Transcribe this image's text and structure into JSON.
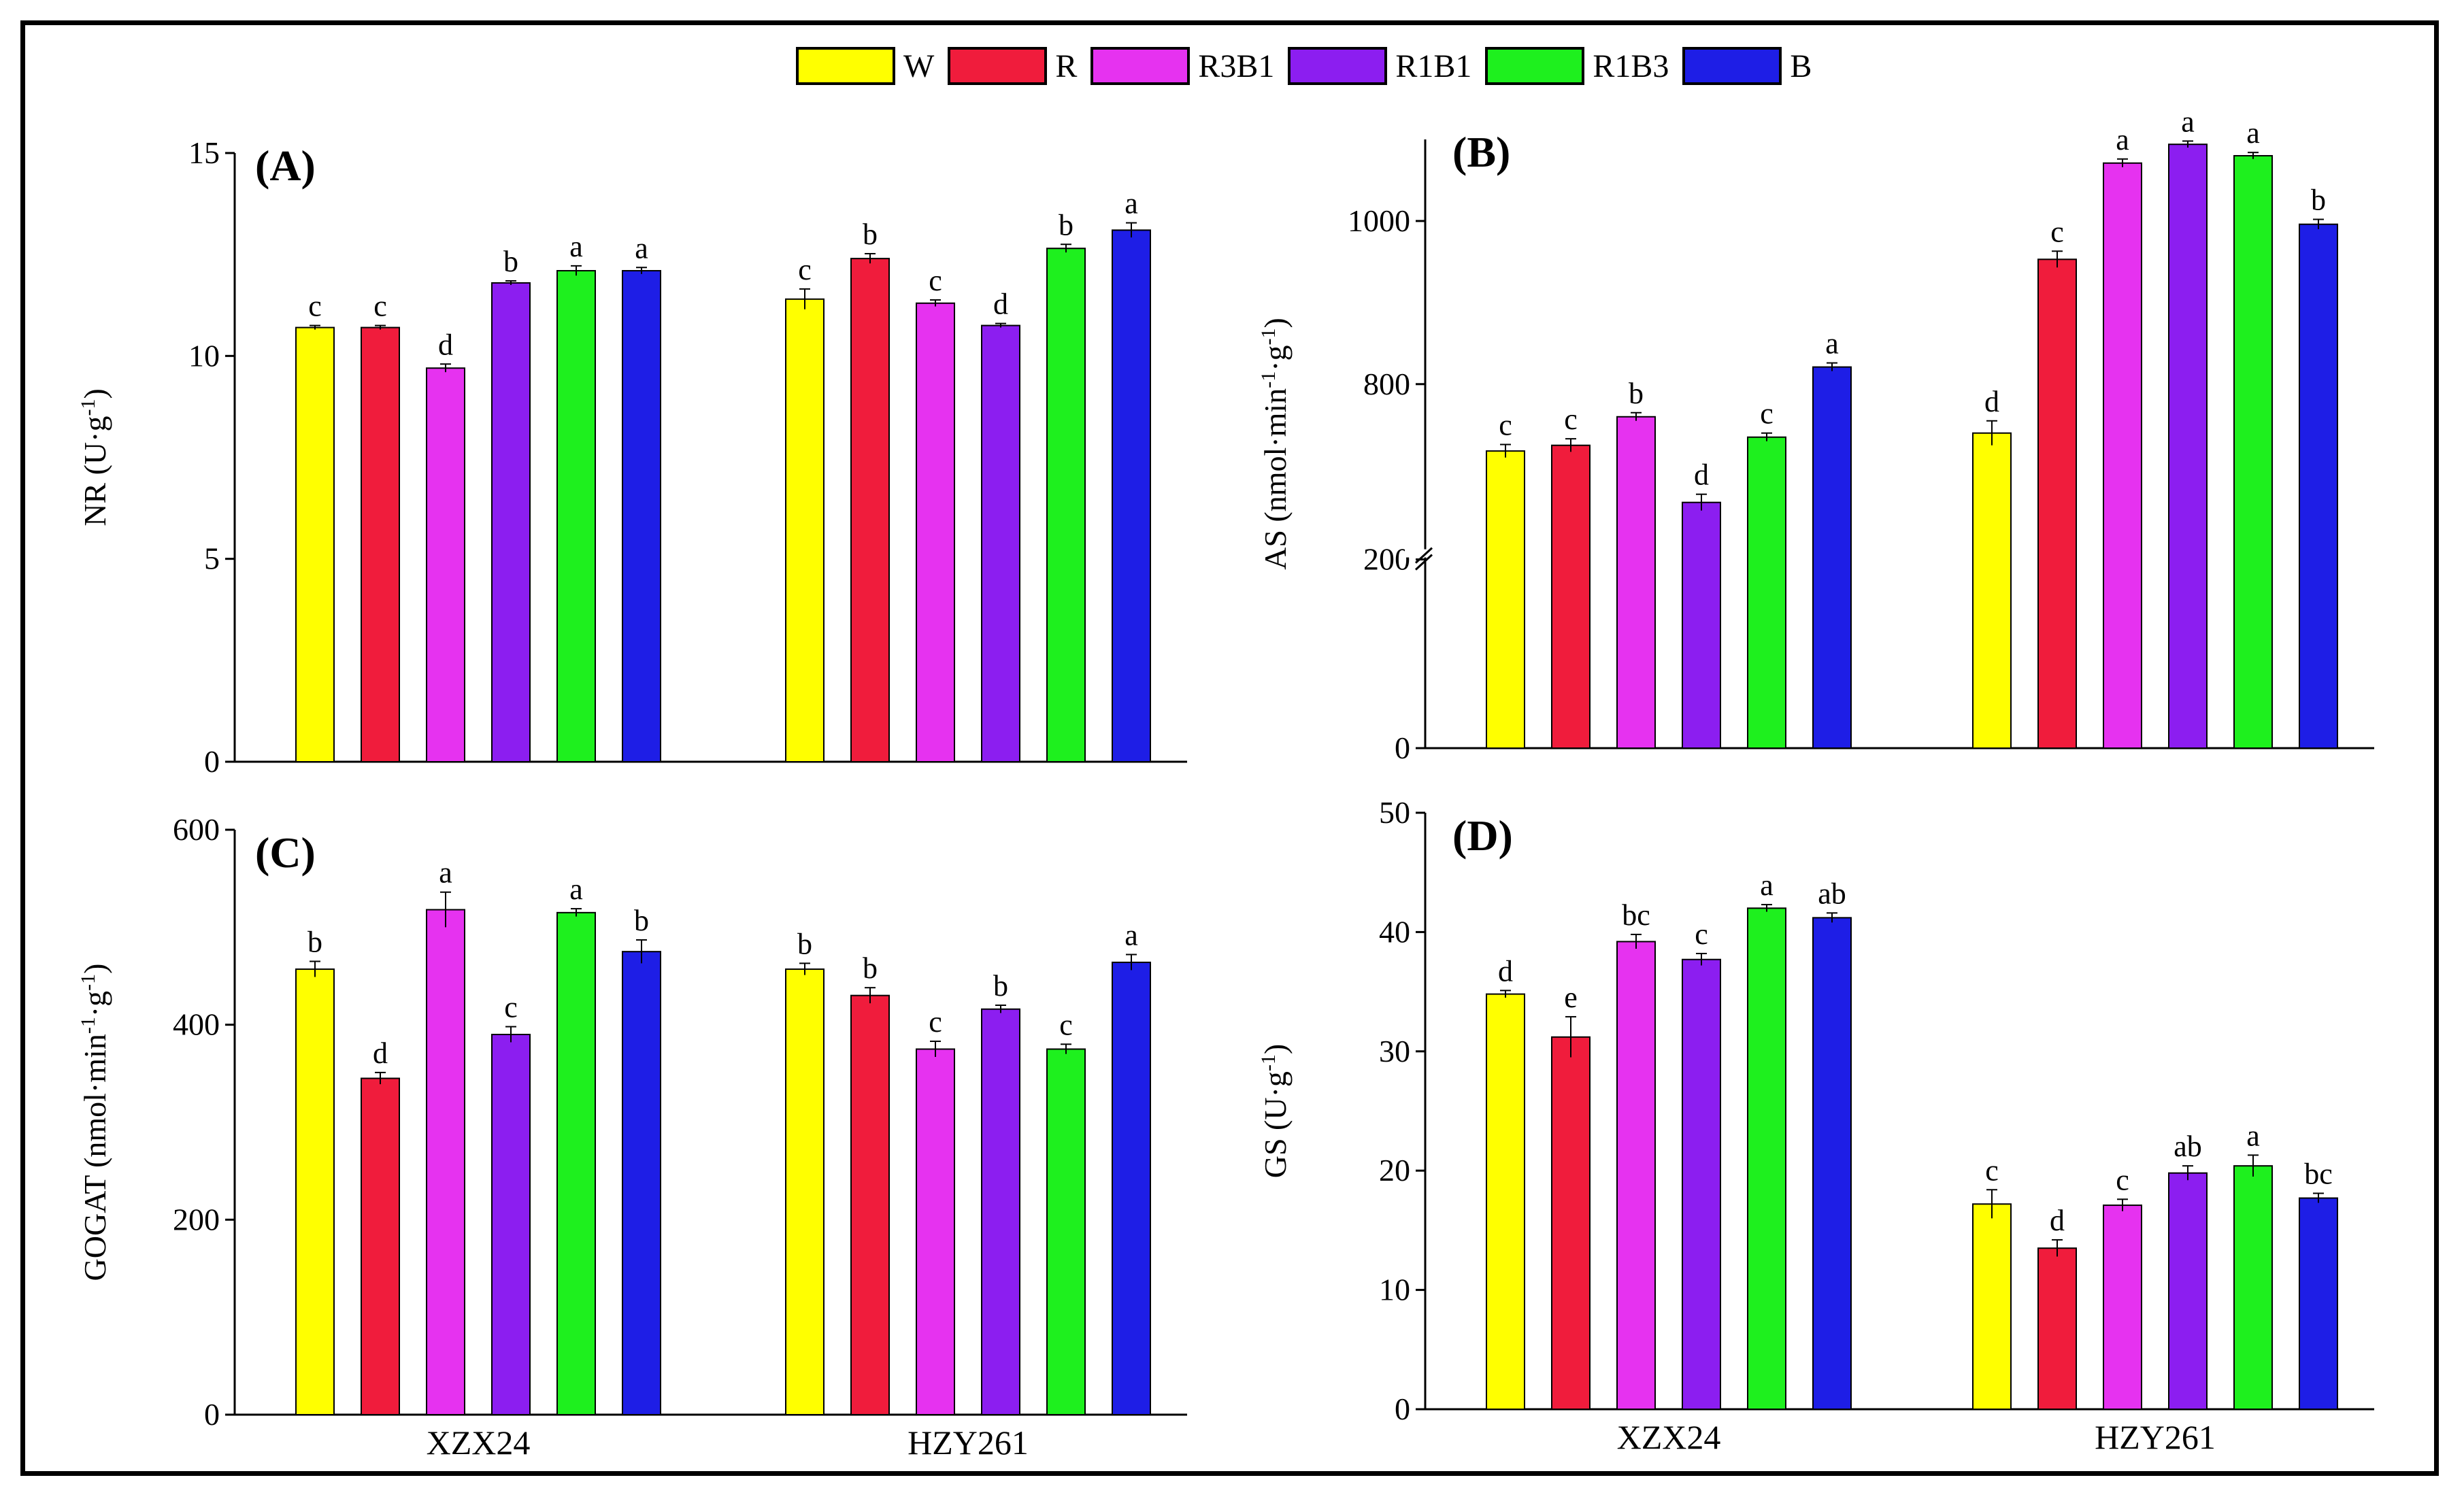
{
  "legend": [
    {
      "label": "W",
      "color": "#FFFF00"
    },
    {
      "label": "R",
      "color": "#F01C3C"
    },
    {
      "label": "R3B1",
      "color": "#E632F0"
    },
    {
      "label": "R1B1",
      "color": "#8C1EF0"
    },
    {
      "label": "R1B3",
      "color": "#1EF01E"
    },
    {
      "label": "B",
      "color": "#1E1EE6"
    }
  ],
  "chart_data": [
    {
      "type": "bar",
      "panel": "(A)",
      "ylabel": "NR",
      "yunit_parts": [
        "(U·g",
        "-1",
        ")"
      ],
      "groups": [
        "XZX24",
        "HZY261"
      ],
      "ylim": [
        0,
        15
      ],
      "yticks": [
        0,
        5,
        10,
        15
      ],
      "series": [
        {
          "name": "W",
          "values": [
            10.7,
            11.4
          ],
          "errors": [
            0.05,
            0.25
          ],
          "letters": [
            "c",
            "c"
          ]
        },
        {
          "name": "R",
          "values": [
            10.7,
            12.4
          ],
          "errors": [
            0.05,
            0.12
          ],
          "letters": [
            "c",
            "b"
          ]
        },
        {
          "name": "R3B1",
          "values": [
            9.7,
            11.3
          ],
          "errors": [
            0.1,
            0.08
          ],
          "letters": [
            "d",
            "c"
          ]
        },
        {
          "name": "R1B1",
          "values": [
            11.8,
            10.75
          ],
          "errors": [
            0.05,
            0.05
          ],
          "letters": [
            "b",
            "d"
          ]
        },
        {
          "name": "R1B3",
          "values": [
            12.1,
            12.65
          ],
          "errors": [
            0.12,
            0.1
          ],
          "letters": [
            "a",
            "b"
          ]
        },
        {
          "name": "B",
          "values": [
            12.1,
            13.1
          ],
          "errors": [
            0.08,
            0.18
          ],
          "letters": [
            "a",
            "a"
          ]
        }
      ]
    },
    {
      "type": "bar",
      "panel": "(B)",
      "ylabel": "AS",
      "yunit_parts": [
        "(nmol·min",
        "-1",
        "·g",
        "-1",
        ")"
      ],
      "groups": [
        "XZX24",
        "HZY261"
      ],
      "ylim": [
        0,
        1100
      ],
      "axis_break": [
        200,
        600
      ],
      "yticks": [
        0,
        200,
        800,
        1000
      ],
      "series": [
        {
          "name": "W",
          "values": [
            718,
            740
          ],
          "errors": [
            8,
            15
          ],
          "letters": [
            "c",
            "d"
          ]
        },
        {
          "name": "R",
          "values": [
            725,
            953
          ],
          "errors": [
            8,
            10
          ],
          "letters": [
            "c",
            "c"
          ]
        },
        {
          "name": "R3B1",
          "values": [
            760,
            1071
          ],
          "errors": [
            5,
            5
          ],
          "letters": [
            "b",
            "a"
          ]
        },
        {
          "name": "R1B1",
          "values": [
            655,
            1094
          ],
          "errors": [
            10,
            4
          ],
          "letters": [
            "d",
            "a"
          ]
        },
        {
          "name": "R1B3",
          "values": [
            735,
            1080
          ],
          "errors": [
            5,
            4
          ],
          "letters": [
            "c",
            "a"
          ]
        },
        {
          "name": "B",
          "values": [
            821,
            996
          ],
          "errors": [
            5,
            6
          ],
          "letters": [
            "a",
            "b"
          ]
        }
      ]
    },
    {
      "type": "bar",
      "panel": "(C)",
      "ylabel": "GOGAT",
      "yunit_parts": [
        "(nmol·min",
        "-1",
        "·g",
        "-1",
        ")"
      ],
      "groups": [
        "XZX24",
        "HZY261"
      ],
      "ylim": [
        0,
        600
      ],
      "yticks": [
        0,
        200,
        400,
        600
      ],
      "series": [
        {
          "name": "W",
          "values": [
            457,
            457
          ],
          "errors": [
            8,
            6
          ],
          "letters": [
            "b",
            "b"
          ]
        },
        {
          "name": "R",
          "values": [
            345,
            430
          ],
          "errors": [
            6,
            8
          ],
          "letters": [
            "d",
            "b"
          ]
        },
        {
          "name": "R3B1",
          "values": [
            518,
            375
          ],
          "errors": [
            18,
            8
          ],
          "letters": [
            "a",
            "c"
          ]
        },
        {
          "name": "R1B1",
          "values": [
            390,
            416
          ],
          "errors": [
            8,
            4
          ],
          "letters": [
            "c",
            "b"
          ]
        },
        {
          "name": "R1B3",
          "values": [
            515,
            375
          ],
          "errors": [
            4,
            5
          ],
          "letters": [
            "a",
            "c"
          ]
        },
        {
          "name": "B",
          "values": [
            475,
            464
          ],
          "errors": [
            12,
            8
          ],
          "letters": [
            "b",
            "a"
          ]
        }
      ]
    },
    {
      "type": "bar",
      "panel": "(D)",
      "ylabel": "GS",
      "yunit_parts": [
        "(U·g",
        "-1",
        ")"
      ],
      "groups": [
        "XZX24",
        "HZY261"
      ],
      "ylim": [
        0,
        50
      ],
      "yticks": [
        0,
        10,
        20,
        30,
        40,
        50
      ],
      "series": [
        {
          "name": "W",
          "values": [
            34.8,
            17.2
          ],
          "errors": [
            0.3,
            1.2
          ],
          "letters": [
            "d",
            "c"
          ]
        },
        {
          "name": "R",
          "values": [
            31.2,
            13.5
          ],
          "errors": [
            1.7,
            0.7
          ],
          "letters": [
            "e",
            "d"
          ]
        },
        {
          "name": "R3B1",
          "values": [
            39.2,
            17.1
          ],
          "errors": [
            0.6,
            0.5
          ],
          "letters": [
            "bc",
            "c"
          ]
        },
        {
          "name": "R1B1",
          "values": [
            37.7,
            19.8
          ],
          "errors": [
            0.5,
            0.6
          ],
          "letters": [
            "c",
            "ab"
          ]
        },
        {
          "name": "R1B3",
          "values": [
            42.0,
            20.4
          ],
          "errors": [
            0.3,
            0.9
          ],
          "letters": [
            "a",
            "a"
          ]
        },
        {
          "name": "B",
          "values": [
            41.2,
            17.7
          ],
          "errors": [
            0.4,
            0.4
          ],
          "letters": [
            "ab",
            "bc"
          ]
        }
      ]
    }
  ]
}
